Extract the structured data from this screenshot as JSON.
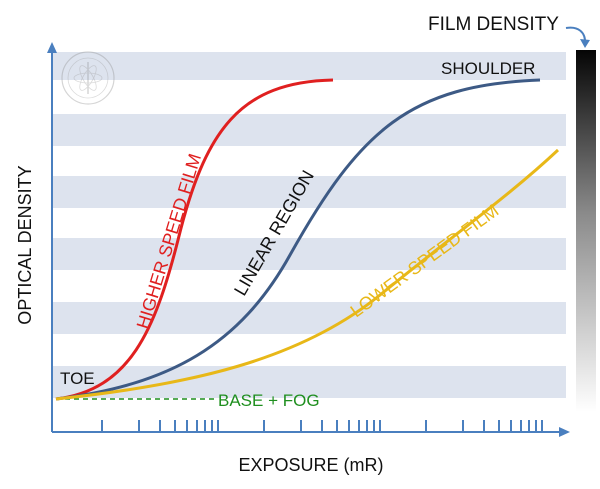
{
  "labels": {
    "film_density": "FILM DENSITY",
    "shoulder": "SHOULDER",
    "toe": "TOE",
    "base_fog": "BASE + FOG",
    "higher_speed": "HIGHER SPEED FILM",
    "lower_speed": "LOWER SPEED FILM",
    "linear_region": "LINEAR REGION",
    "y_axis": "OPTICAL DENSITY",
    "x_axis": "EXPOSURE (mR)"
  },
  "colors": {
    "band": "#dde3ee",
    "axis": "#4a7fbf",
    "higher_speed": "#e02020",
    "linear": "#3d5a85",
    "lower_speed": "#e8b818",
    "base_fog": "#1f8f1f"
  },
  "icons": {
    "seal": "watermark-seal-icon",
    "arrow": "curved-arrow-icon"
  }
}
